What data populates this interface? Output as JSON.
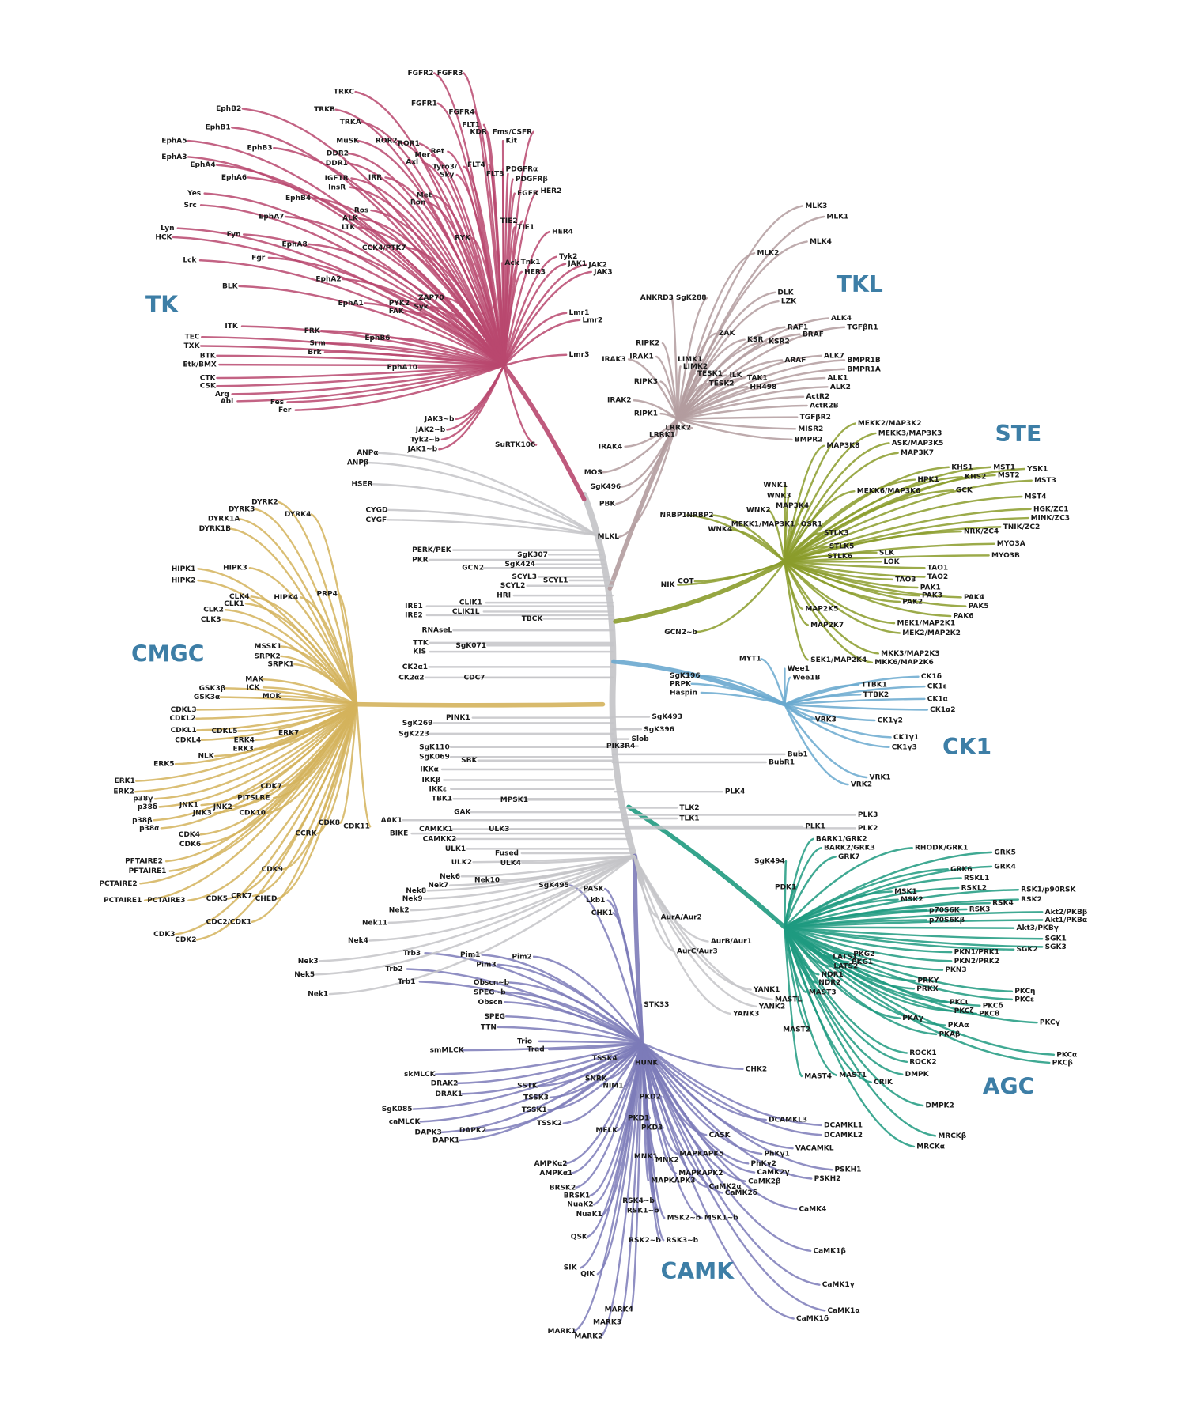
{
  "group_label_color": "#3d7ea6",
  "trunk_color": "#c9c9cc",
  "groups": [
    {
      "name": "TK",
      "color": "#b8486f",
      "kinases": [
        "FGFR2",
        "FGFR3",
        "FGFR1",
        "FGFR4",
        "FLT1",
        "KDR",
        "Fms/CSFR",
        "Kit",
        "TRKC",
        "TRKB",
        "TRKA",
        "MuSK",
        "ROR2",
        "ROR1",
        "Ret",
        "Mer",
        "Axl",
        "Tyro3/",
        "Sky",
        "FLT4",
        "FLT3",
        "PDGFRα",
        "PDGFRβ",
        "EGFR",
        "HER2",
        "DDR2",
        "DDR1",
        "IGF1R",
        "InsR",
        "IRR",
        "Met",
        "Ron",
        "Ros",
        "ALK",
        "LTK",
        "RYK",
        "CCK4/PTK7",
        "TIE2",
        "TIE1",
        "HER4",
        "Ack",
        "Tnk1",
        "HER3",
        "Tyk2",
        "JAK1",
        "JAK2",
        "JAK3",
        "Lmr1",
        "Lmr2",
        "Lmr3",
        "EphB2",
        "EphB1",
        "EphA5",
        "EphA3",
        "EphA4",
        "EphB3",
        "EphA6",
        "EphB4",
        "Yes",
        "Src",
        "EphA7",
        "Lyn",
        "HCK",
        "Fyn",
        "EphA8",
        "Fgr",
        "Lck",
        "BLK",
        "EphA2",
        "EphA1",
        "PYK2",
        "FAK",
        "ZAP70",
        "Syk",
        "ITK",
        "FRK",
        "Srm",
        "Brk",
        "TEC",
        "TXK",
        "BTK",
        "Etk/BMX",
        "EphB6",
        "EphA10",
        "CTK",
        "CSK",
        "Arg",
        "Abl",
        "Fes",
        "Fer",
        "JAK3~b",
        "JAK2~b",
        "Tyk2~b",
        "JAK1~b",
        "SuRTK106"
      ]
    },
    {
      "name": "TKL",
      "color": "#b39c9f",
      "kinases": [
        "MLK3",
        "MLK1",
        "MLK4",
        "MLK2",
        "DLK",
        "LZK",
        "ANKRD3",
        "SgK288",
        "RIPK2",
        "ALK4",
        "TGFβR1",
        "RAF1",
        "BRAF",
        "ZAK",
        "KSR",
        "KSR2",
        "IRAK3",
        "IRAK1",
        "LIMK1",
        "LIMK2",
        "ARAF",
        "ALK7",
        "BMPR1B",
        "BMPR1A",
        "TESK1",
        "ILK",
        "TESK2",
        "TAK1",
        "HH498",
        "RIPK3",
        "ALK1",
        "ALK2",
        "ActR2",
        "ActR2B",
        "IRAK2",
        "RIPK1",
        "TGFβR2",
        "LRRK2",
        "LRRK1",
        "MISR2",
        "BMPR2",
        "IRAK4",
        "MOS",
        "SgK496",
        "PBK",
        "MLKL"
      ]
    },
    {
      "name": "STE",
      "color": "#8b9c2c",
      "kinases": [
        "MEKK2/MAP3K2",
        "MEKK3/MAP3K3",
        "ASK/MAP3K5",
        "MAP3K8",
        "MAP3K7",
        "KHS1",
        "MST1",
        "YSK1",
        "KHS2",
        "MST2",
        "MST3",
        "HPK1",
        "GCK",
        "MEKK6/MAP3K6",
        "MST4",
        "WNK1",
        "WNK3",
        "MAP3K4",
        "WNK2",
        "HGK/ZC1",
        "MINK/ZC3",
        "TNIK/ZC2",
        "NRBP1",
        "NRBP2",
        "MEKK1/MAP3K1",
        "OSR1",
        "WNK4",
        "NRK/ZC4",
        "STLK3",
        "MYO3A",
        "MYO3B",
        "STLK5",
        "STLK6",
        "SLK",
        "LOK",
        "TAO1",
        "TAO2",
        "TAO3",
        "NIK",
        "COT",
        "PAK1",
        "PAK3",
        "PAK2",
        "PAK4",
        "PAK5",
        "PAK6",
        "MAP2K5",
        "MEK1/MAP2K1",
        "MAP2K7",
        "MEK2/MAP2K2",
        "GCN2~b",
        "MKK3/MAP2K3",
        "SEK1/MAP2K4",
        "MKK6/MAP2K6"
      ]
    },
    {
      "name": "CK1",
      "color": "#6aa9cf",
      "kinases": [
        "MYT1",
        "Wee1",
        "Wee1B",
        "SgK196",
        "PRPK",
        "Haspin",
        "TTBK1",
        "TTBK2",
        "CK1δ",
        "CK1ε",
        "CK1α",
        "CK1α2",
        "VRK3",
        "CK1γ2",
        "CK1γ1",
        "CK1γ3",
        "VRK1",
        "VRK2"
      ]
    },
    {
      "name": "CMGC",
      "color": "#d4b35c",
      "kinases": [
        "DYRK2",
        "DYRK3",
        "DYRK4",
        "DYRK1A",
        "DYRK1B",
        "HIPK1",
        "HIPK3",
        "HIPK2",
        "PRP4",
        "CLK4",
        "CLK1",
        "HIPK4",
        "CLK2",
        "CLK3",
        "MSSK1",
        "SRPK2",
        "SRPK1",
        "MAK",
        "GSK3β",
        "ICK",
        "GSK3α",
        "MOK",
        "CDKL3",
        "CDKL2",
        "CDKL1",
        "CDKL5",
        "CDKL4",
        "ERK4",
        "ERK7",
        "ERK3",
        "NLK",
        "ERK5",
        "ERK1",
        "CDK7",
        "ERK2",
        "p38γ",
        "p38δ",
        "PITSLRE",
        "JNK1",
        "JNK2",
        "JNK3",
        "CDK10",
        "p38β",
        "p38α",
        "CDK8",
        "CDK11",
        "CCRK",
        "CDK4",
        "CDK6",
        "CDK9",
        "PFTAIRE2",
        "PFTAIRE1",
        "PCTAIRE2",
        "CDK5",
        "CRK7",
        "CHED",
        "PCTAIRE1",
        "PCTAIRE3",
        "CDC2/CDK1",
        "CDK3",
        "CDK2"
      ]
    },
    {
      "name": "AGC",
      "color": "#1f9a80",
      "kinases": [
        "SgK494",
        "BARK1/GRK2",
        "BARK2/GRK3",
        "GRK7",
        "RHODK/GRK1",
        "GRK5",
        "GRK6",
        "GRK4",
        "RSKL1",
        "RSKL2",
        "PDK1",
        "MSK1",
        "MSK2",
        "RSK1/p90RSK",
        "RSK2",
        "RSK4",
        "RSK3",
        "p70S6K",
        "p70S6Kβ",
        "Akt2/PKBβ",
        "Akt1/PKBα",
        "Akt3/PKBγ",
        "SGK1",
        "SGK3",
        "SGK2",
        "PKN1/PRK1",
        "PKN2/PRK2",
        "PKG2",
        "PKG1",
        "LATS1",
        "LATS2",
        "PKN3",
        "NDR1",
        "NDR2",
        "MAST3",
        "PRKY",
        "PRKX",
        "PKCη",
        "PKCε",
        "PKCι",
        "PKCζ",
        "PKCδ",
        "PKCθ",
        "PKAγ",
        "PKAα",
        "PKAβ",
        "PKCγ",
        "MAST2",
        "ROCK1",
        "ROCK2",
        "PKCα",
        "PKCβ",
        "MAST4",
        "MAST1",
        "DMPK",
        "CRIK",
        "DMPK2",
        "MRCKβ",
        "MRCKα"
      ]
    },
    {
      "name": "CAMK",
      "color": "#7d7bb8",
      "kinases": [
        "SgK495",
        "PASK",
        "Lkb1",
        "CHK1",
        "Trb3",
        "Pim1",
        "Pim2",
        "Pim3",
        "Trb2",
        "Trb1",
        "Obscn~b",
        "SPEG~b",
        "Obscn",
        "SPEG",
        "STK33",
        "TTN",
        "Trio",
        "Trad",
        "smMLCK",
        "TSSK4",
        "HUNK",
        "CHK2",
        "skMLCK",
        "DRAK2",
        "SNRK",
        "NIM1",
        "SSTK",
        "DRAK1",
        "TSSK3",
        "PKD2",
        "TSSK1",
        "SgK085",
        "caMLCK",
        "DAPK2",
        "DAPK3",
        "DAPK1",
        "TSSK2",
        "PKD1",
        "PKD3",
        "MELK",
        "DCAMKL3",
        "DCAMKL1",
        "DCAMKL2",
        "CASK",
        "VACAMKL",
        "MAPKAPK5",
        "MNK1",
        "MNK2",
        "PhKγ1",
        "AMPKα2",
        "PhKγ2",
        "PSKH1",
        "AMPKα1",
        "MAPKAPK2",
        "CaMK2γ",
        "CaMK2α",
        "CaMK2β",
        "MAPKAPK3",
        "PSKH2",
        "BRSK2",
        "CaMK2δ",
        "BRSK1",
        "NuaK2",
        "RSK4~b",
        "RSK1~b",
        "CaMK4",
        "NuaK1",
        "MSK2~b",
        "MSK1~b",
        "QSK",
        "RSK2~b",
        "RSK3~b",
        "CaMK1β",
        "SIK",
        "QIK",
        "CaMK1γ",
        "CaMK1α",
        "CaMK1δ",
        "MARK4",
        "MARK3",
        "MARK1",
        "MARK2"
      ]
    },
    {
      "name": "",
      "color": "#c4c4c8",
      "kinases": [
        "ANPα",
        "ANPβ",
        "HSER",
        "CYGD",
        "CYGF",
        "PERK/PEK",
        "PKR",
        "SgK307",
        "SgK424",
        "GCN2",
        "SCYL3",
        "SCYL1",
        "SCYL2",
        "HRI",
        "IRE1",
        "CLIK1",
        "IRE2",
        "CLIK1L",
        "TBCK",
        "RNAseL",
        "TTK",
        "SgK071",
        "KIS",
        "CK2α1",
        "CK2α2",
        "CDC7",
        "PINK1",
        "SgK269",
        "SgK223",
        "SgK110",
        "SgK069",
        "SBK",
        "IKKα",
        "IKKβ",
        "IKKε",
        "TBK1",
        "MPSK1",
        "GAK",
        "AAK1",
        "BIKE",
        "CAMKK1",
        "ULK3",
        "CAMKK2",
        "ULK1",
        "Fused",
        "ULK2",
        "ULK4",
        "Nek6",
        "Nek10",
        "Nek7",
        "Nek8",
        "Nek9",
        "Nek2",
        "Nek11",
        "Nek4",
        "Nek3",
        "Nek5",
        "Nek1",
        "PLK4",
        "TLK2",
        "TLK1",
        "PLK3",
        "PLK1",
        "PLK2",
        "AurA/Aur2",
        "AurB/Aur1",
        "AurC/Aur3",
        "YANK1",
        "MASTL",
        "YANK2",
        "YANK3",
        "Bub1",
        "BubR1",
        "SgK493",
        "SgK396",
        "Slob",
        "PIK3R4"
      ]
    }
  ]
}
